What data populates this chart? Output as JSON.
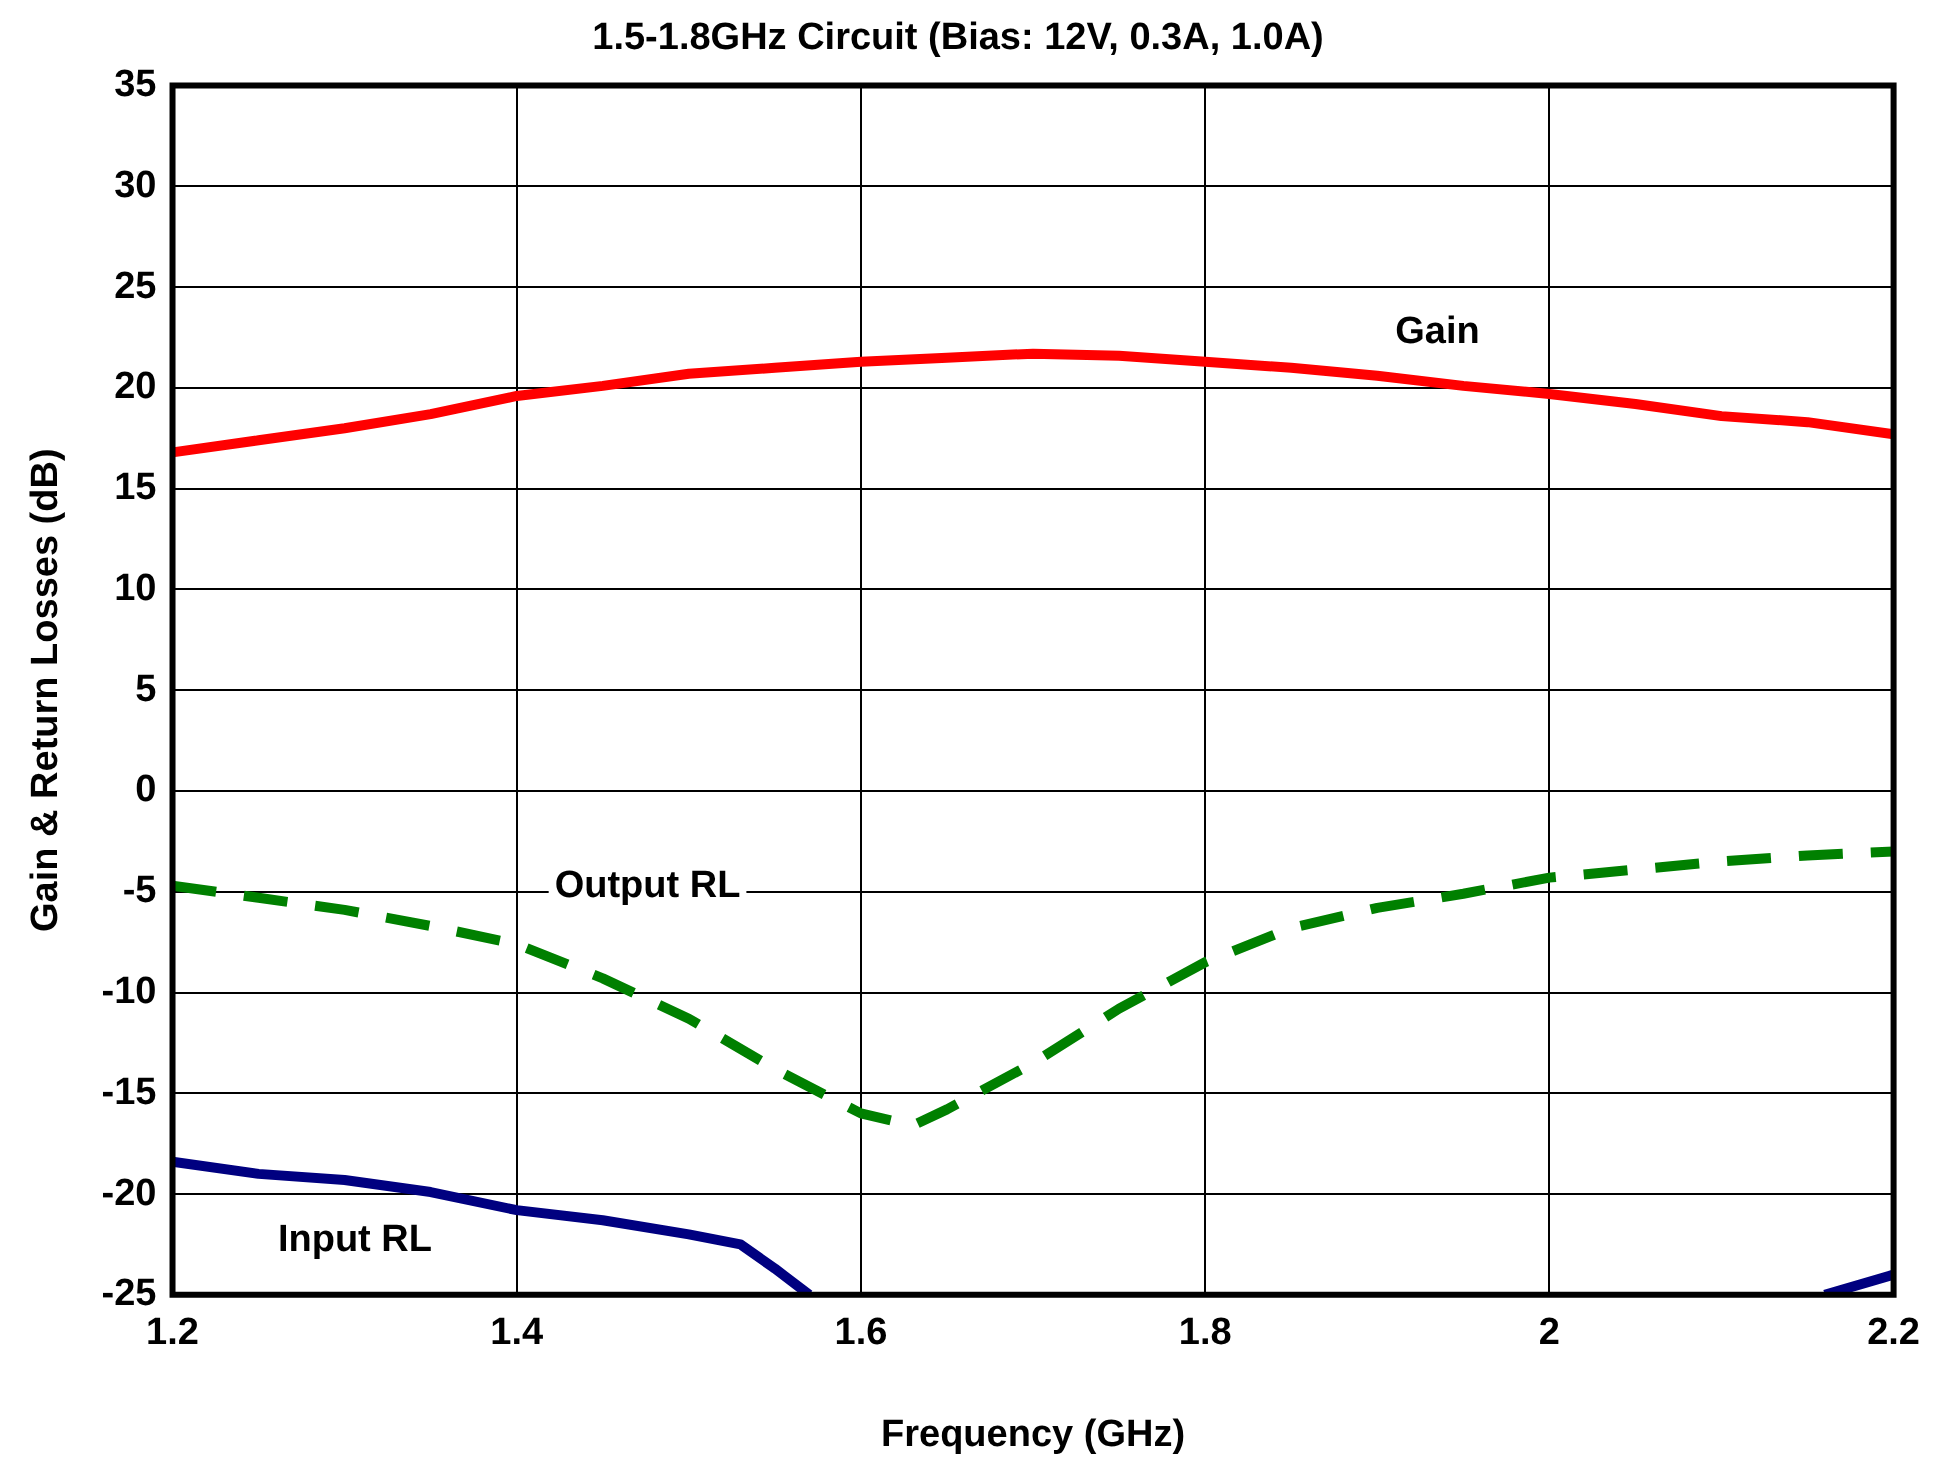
{
  "chart_data": {
    "type": "line",
    "title": "1.5-1.8GHz Circuit (Bias: 12V, 0.3A, 1.0A)",
    "xlabel": "Frequency (GHz)",
    "ylabel": "Gain & Return Losses (dB)",
    "xlim": [
      1.2,
      2.2
    ],
    "xticks": [
      1.2,
      1.4,
      1.6,
      1.8,
      2,
      2.2
    ],
    "ylim": [
      -25,
      35
    ],
    "yticks": [
      -25,
      -20,
      -15,
      -10,
      -5,
      0,
      5,
      10,
      15,
      20,
      25,
      30,
      35
    ],
    "grid": true,
    "legend": false,
    "marker": "none",
    "series": [
      {
        "name": "Gain",
        "color": "#ff0000",
        "line_style": "solid",
        "x": [
          1.2,
          1.25,
          1.3,
          1.35,
          1.4,
          1.45,
          1.5,
          1.55,
          1.6,
          1.65,
          1.7,
          1.75,
          1.8,
          1.85,
          1.9,
          1.95,
          2.0,
          2.05,
          2.1,
          2.15,
          2.2
        ],
        "values": [
          16.8,
          17.4,
          18.0,
          18.7,
          19.6,
          20.1,
          20.7,
          21.0,
          21.3,
          21.5,
          21.7,
          21.6,
          21.3,
          21.0,
          20.6,
          20.1,
          19.7,
          19.2,
          18.6,
          18.3,
          17.7
        ]
      },
      {
        "name": "Output RL",
        "color": "#008000",
        "line_style": "dashed",
        "x": [
          1.2,
          1.25,
          1.3,
          1.35,
          1.4,
          1.45,
          1.5,
          1.55,
          1.6,
          1.63,
          1.65,
          1.7,
          1.75,
          1.8,
          1.85,
          1.9,
          1.95,
          2.0,
          2.05,
          2.1,
          2.15,
          2.2
        ],
        "values": [
          -4.7,
          -5.3,
          -5.9,
          -6.7,
          -7.6,
          -9.3,
          -11.3,
          -13.8,
          -16.0,
          -16.6,
          -15.8,
          -13.5,
          -10.8,
          -8.5,
          -6.8,
          -5.8,
          -5.1,
          -4.3,
          -3.9,
          -3.5,
          -3.2,
          -3.0
        ]
      },
      {
        "name": "Input RL",
        "color": "#000080",
        "line_style": "solid",
        "x": [
          1.2,
          1.25,
          1.3,
          1.35,
          1.4,
          1.45,
          1.5,
          1.53,
          1.55,
          1.57,
          1.8,
          2.16,
          2.2
        ],
        "values": [
          -18.4,
          -19.0,
          -19.3,
          -19.9,
          -20.8,
          -21.3,
          -22.0,
          -22.5,
          -23.7,
          -25,
          null,
          -25,
          -24.0
        ]
      }
    ]
  }
}
